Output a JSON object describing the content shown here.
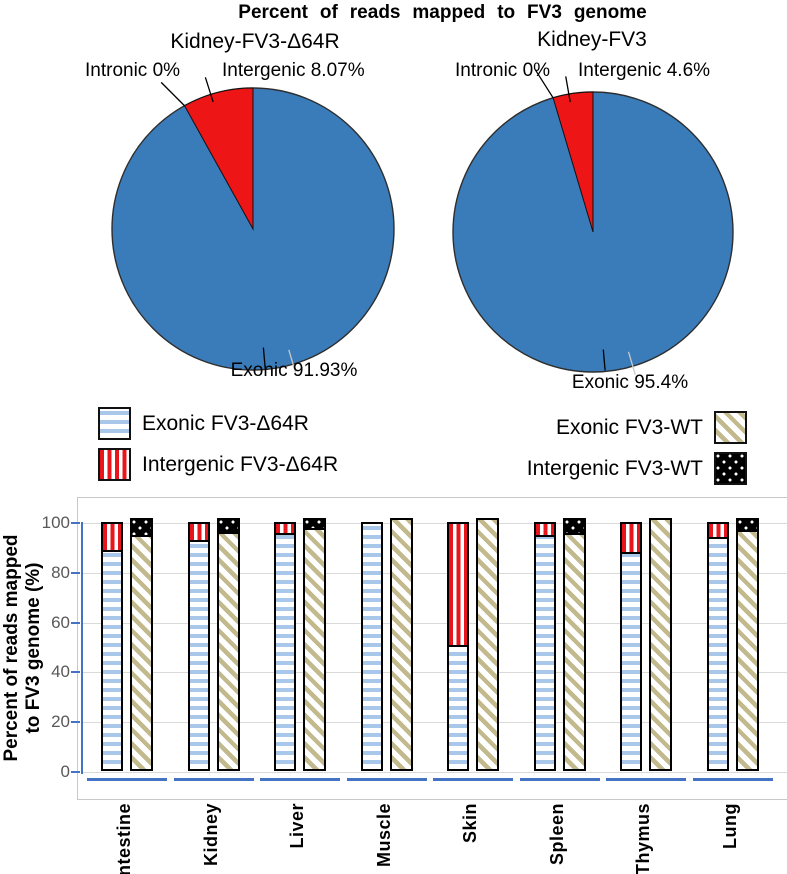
{
  "title": "Percent of reads mapped to FV3 genome",
  "legend": {
    "exonic_d64r": "Exonic FV3-Δ64R",
    "intergenic_d64r": "Intergenic FV3-Δ64R",
    "exonic_wt": "Exonic FV3-WT",
    "intergenic_wt": "Intergenic FV3-WT"
  },
  "colors": {
    "pie_blue": "#3a7cba",
    "pie_red": "#ed1515",
    "stripe_blue": "#a9c7e9",
    "stripe_red": "#e8151c",
    "stripe_tan": "#c2b98d",
    "axis_blue": "#4472c4",
    "grid_gray": "#d9d9d9",
    "tick_text_gray": "#595959"
  },
  "chart_data": [
    {
      "type": "pie",
      "title": "Kidney-FV3-Δ64R",
      "slices": [
        {
          "label": "Exonic",
          "value": 91.93,
          "color": "#3a7cba"
        },
        {
          "label": "Intergenic",
          "value": 8.07,
          "color": "#ed1515"
        },
        {
          "label": "Intronic",
          "value": 0,
          "color": "#3a7cba"
        }
      ],
      "callouts": {
        "intronic": "Intronic 0%",
        "intergenic": "Intergenic 8.07%",
        "exonic": "Exonic 91.93%"
      }
    },
    {
      "type": "pie",
      "title": "Kidney-FV3",
      "slices": [
        {
          "label": "Exonic",
          "value": 95.4,
          "color": "#3a7cba"
        },
        {
          "label": "Intergenic",
          "value": 4.6,
          "color": "#ed1515"
        },
        {
          "label": "Intronic",
          "value": 0,
          "color": "#3a7cba"
        }
      ],
      "callouts": {
        "intronic": "Intronic 0%",
        "intergenic": "Intergenic 4.6%",
        "exonic": "Exonic 95.4%"
      }
    },
    {
      "type": "bar",
      "stacked": true,
      "categories": [
        "Intestine",
        "Kidney",
        "Liver",
        "Muscle",
        "Skin",
        "Spleen",
        "Thymus",
        "Lung"
      ],
      "series": [
        {
          "name": "Exonic FV3-Δ64R",
          "values": [
            88,
            91.93,
            95,
            100,
            50,
            94,
            87,
            93
          ]
        },
        {
          "name": "Intergenic FV3-Δ64R",
          "values": [
            12,
            8.07,
            5,
            0,
            50,
            6,
            13,
            7
          ]
        },
        {
          "name": "Exonic FV3-WT",
          "values": [
            94,
            95.4,
            97,
            100,
            100,
            95,
            100,
            96
          ]
        },
        {
          "name": "Intergenic FV3-WT",
          "values": [
            6,
            4.6,
            3,
            0,
            0,
            5,
            0,
            4
          ]
        }
      ],
      "ylabel": "Percent of reads mapped to FV3 genome (%)",
      "ylabel_lines": [
        "Percent of reads mapped",
        "to FV3 genome (%)"
      ],
      "ylim": [
        0,
        100
      ],
      "yticks": [
        0,
        20,
        40,
        60,
        80,
        100
      ],
      "grid": true,
      "legend_position": "above"
    }
  ]
}
